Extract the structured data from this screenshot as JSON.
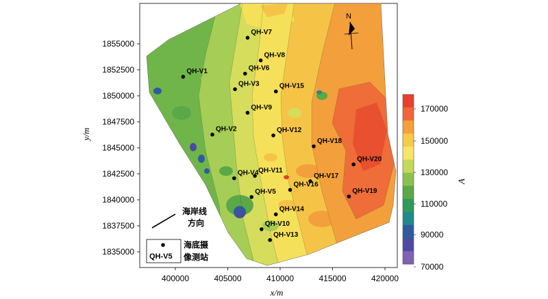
{
  "map": {
    "x_axis": {
      "title": "x/m",
      "ticks": [
        "400000",
        "405000",
        "410000",
        "415000",
        "420000"
      ]
    },
    "y_axis": {
      "title": "y/m",
      "ticks": [
        "1855000",
        "1852500",
        "1850000",
        "1847500",
        "1845000",
        "1842500",
        "1840000",
        "1837500",
        "1835000"
      ]
    },
    "colorbar": {
      "title": "A",
      "labels": [
        "170000",
        "150000",
        "130000",
        "110000",
        "90000",
        "70000"
      ],
      "colors": [
        "#e8402e",
        "#f0663a",
        "#f5a03a",
        "#f5cc44",
        "#f8e566",
        "#c5d85a",
        "#8cc14e",
        "#5aa848",
        "#2f9a5c",
        "#1e8a8a",
        "#2f5b9e",
        "#4d4aa0",
        "#7f62b2"
      ]
    },
    "north_label": "N",
    "coast_label_line1": "海岸线",
    "coast_label_line2": "方向",
    "legend": {
      "station_text": "QH-V5",
      "desc_line1": "海底摄",
      "desc_line2": "像测站"
    },
    "stations": [
      {
        "name": "QH-V7",
        "x": 406890,
        "y": 1855580
      },
      {
        "name": "QH-V8",
        "x": 408140,
        "y": 1853400
      },
      {
        "name": "QH-V1",
        "x": 400740,
        "y": 1851830
      },
      {
        "name": "QH-V6",
        "x": 406650,
        "y": 1852130
      },
      {
        "name": "QH-V3",
        "x": 405690,
        "y": 1850630
      },
      {
        "name": "QH-V15",
        "x": 409590,
        "y": 1850420
      },
      {
        "name": "QH-V9",
        "x": 406890,
        "y": 1848370
      },
      {
        "name": "QH-V2",
        "x": 403530,
        "y": 1846270
      },
      {
        "name": "QH-V12",
        "x": 409350,
        "y": 1846190
      },
      {
        "name": "QH-V18",
        "x": 413200,
        "y": 1845140
      },
      {
        "name": "QH-V20",
        "x": 417000,
        "y": 1843400
      },
      {
        "name": "QH-V11",
        "x": 407590,
        "y": 1842300
      },
      {
        "name": "QH-V4",
        "x": 405610,
        "y": 1842070
      },
      {
        "name": "QH-V17",
        "x": 412880,
        "y": 1841780
      },
      {
        "name": "QH-V16",
        "x": 410950,
        "y": 1840950
      },
      {
        "name": "QH-V5",
        "x": 407270,
        "y": 1840270
      },
      {
        "name": "QH-V19",
        "x": 416560,
        "y": 1840320
      },
      {
        "name": "QH-V14",
        "x": 409590,
        "y": 1838600
      },
      {
        "name": "QH-V10",
        "x": 408220,
        "y": 1837170
      },
      {
        "name": "QH-V13",
        "x": 409030,
        "y": 1836130
      }
    ]
  }
}
